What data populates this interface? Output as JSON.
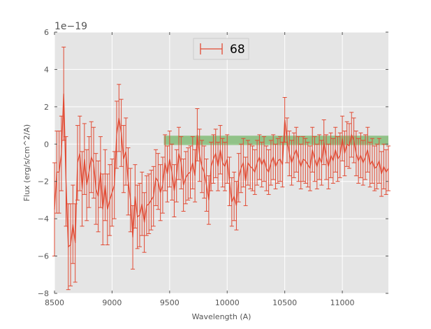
{
  "chart_data": {
    "type": "line",
    "title": "",
    "xlabel": "Wavelength (A)",
    "ylabel": "Flux (erg/s/cm^2/A)",
    "y_offset_text": "1e−19",
    "y_scale": 1e-19,
    "xlim": [
      8500,
      11400
    ],
    "ylim": [
      -8,
      6
    ],
    "x_ticks": [
      8500,
      9000,
      9500,
      10000,
      10500,
      11000
    ],
    "y_ticks": [
      -8,
      -6,
      -4,
      -2,
      0,
      2,
      4,
      6
    ],
    "y_tick_labels": [
      "−8",
      "−6",
      "−4",
      "−2",
      "0",
      "2",
      "4",
      "6"
    ],
    "grid": true,
    "background": "#e5e5e5",
    "legend": {
      "placement": "top-center",
      "entries": [
        "68"
      ]
    },
    "band": {
      "x": [
        9450,
        11400
      ],
      "y": [
        -0.05,
        0.45
      ],
      "color": "#4da63d"
    },
    "series": [
      {
        "name": "68",
        "color": "#e24a33",
        "error_bars": true,
        "x": [
          8500,
          8520,
          8540,
          8560,
          8580,
          8600,
          8620,
          8640,
          8660,
          8680,
          8700,
          8720,
          8740,
          8760,
          8780,
          8800,
          8820,
          8840,
          8860,
          8880,
          8900,
          8920,
          8940,
          8960,
          8980,
          9000,
          9020,
          9040,
          9060,
          9080,
          9100,
          9120,
          9140,
          9160,
          9180,
          9200,
          9220,
          9240,
          9260,
          9280,
          9300,
          9320,
          9340,
          9360,
          9380,
          9400,
          9420,
          9440,
          9460,
          9480,
          9500,
          9520,
          9540,
          9560,
          9580,
          9600,
          9620,
          9640,
          9660,
          9680,
          9700,
          9720,
          9740,
          9760,
          9780,
          9800,
          9820,
          9840,
          9860,
          9880,
          9900,
          9920,
          9940,
          9960,
          9980,
          10000,
          10020,
          10040,
          10060,
          10080,
          10100,
          10120,
          10140,
          10160,
          10180,
          10200,
          10220,
          10240,
          10260,
          10280,
          10300,
          10320,
          10340,
          10360,
          10380,
          10400,
          10420,
          10440,
          10460,
          10480,
          10500,
          10520,
          10540,
          10560,
          10580,
          10600,
          10620,
          10640,
          10660,
          10680,
          10700,
          10720,
          10740,
          10760,
          10780,
          10800,
          10820,
          10840,
          10860,
          10880,
          10900,
          10920,
          10940,
          10960,
          10980,
          11000,
          11020,
          11040,
          11060,
          11080,
          11100,
          11120,
          11140,
          11160,
          11180,
          11200,
          11220,
          11240,
          11260,
          11280,
          11300,
          11320,
          11340,
          11360,
          11380,
          11400
        ],
        "y": [
          -3.5,
          -1.5,
          -1.5,
          -0.5,
          2.7,
          -2.0,
          -5.5,
          -5.4,
          -4.3,
          -5.3,
          -1.0,
          -0.5,
          -2.4,
          -0.8,
          -2.2,
          -1.5,
          -0.7,
          -1.0,
          -2.4,
          -2.8,
          -1.5,
          -3.5,
          -2.2,
          -3.5,
          -3.0,
          -2.6,
          -2.2,
          0.5,
          1.4,
          0.6,
          -0.8,
          -0.4,
          -2.0,
          -3.0,
          -5.0,
          -2.8,
          -3.9,
          -3.8,
          -3.2,
          -4.2,
          -3.3,
          -3.2,
          -3.0,
          -2.8,
          -1.8,
          -2.0,
          -2.6,
          -2.2,
          -1.0,
          -1.6,
          -0.8,
          -1.5,
          -2.5,
          -1.7,
          -0.5,
          -1.0,
          -2.2,
          -1.8,
          -1.6,
          -1.5,
          -1.0,
          -1.7,
          0.5,
          -0.6,
          -1.2,
          -1.5,
          -2.2,
          -3.0,
          -1.2,
          -0.8,
          -0.5,
          -1.2,
          -0.3,
          -1.0,
          -1.2,
          -0.8,
          -2.0,
          -3.1,
          -2.8,
          -3.3,
          -1.8,
          -1.3,
          -1.0,
          -2.0,
          -1.0,
          -1.2,
          -1.3,
          -1.5,
          -1.0,
          -0.7,
          -1.1,
          -0.8,
          -1.3,
          -1.5,
          -1.0,
          -0.7,
          -1.2,
          -0.9,
          -0.8,
          -1.1,
          1.3,
          0.2,
          -0.5,
          -1.0,
          -0.6,
          -0.3,
          -0.8,
          -1.2,
          -0.8,
          -0.9,
          -1.1,
          -1.3,
          -0.3,
          -0.8,
          -1.2,
          -0.7,
          -1.0,
          0.1,
          -0.7,
          -1.2,
          -0.6,
          -0.9,
          -0.3,
          -0.8,
          -0.6,
          0.3,
          -0.5,
          0.0,
          -0.1,
          0.5,
          0.2,
          -0.5,
          -0.9,
          -0.6,
          -1.0,
          -0.7,
          -0.3,
          -1.1,
          -0.9,
          -1.3,
          -1.2,
          -0.9,
          -1.6,
          -1.2,
          -1.5,
          -1.3
        ],
        "err": [
          2.5,
          2.2,
          2.2,
          2.0,
          2.5,
          2.4,
          2.3,
          2.2,
          2.1,
          2.1,
          2.0,
          2.0,
          2.0,
          1.9,
          1.9,
          1.9,
          1.9,
          1.9,
          1.9,
          1.9,
          1.9,
          1.9,
          1.9,
          1.9,
          1.9,
          1.8,
          1.8,
          1.8,
          1.8,
          1.8,
          1.8,
          1.8,
          1.8,
          1.7,
          1.7,
          1.7,
          1.7,
          1.7,
          1.7,
          1.6,
          1.6,
          1.6,
          1.6,
          1.6,
          1.5,
          1.5,
          1.5,
          1.5,
          1.5,
          1.5,
          1.5,
          1.5,
          1.4,
          1.4,
          1.4,
          1.4,
          1.4,
          1.4,
          1.4,
          1.4,
          1.4,
          1.4,
          1.4,
          1.4,
          1.4,
          1.4,
          1.4,
          1.3,
          1.3,
          1.3,
          1.3,
          1.3,
          1.3,
          1.3,
          1.3,
          1.3,
          1.3,
          1.3,
          1.3,
          1.3,
          1.3,
          1.3,
          1.3,
          1.3,
          1.2,
          1.2,
          1.2,
          1.2,
          1.2,
          1.2,
          1.2,
          1.2,
          1.2,
          1.2,
          1.2,
          1.2,
          1.2,
          1.2,
          1.2,
          1.2,
          1.2,
          1.2,
          1.2,
          1.2,
          1.2,
          1.2,
          1.2,
          1.2,
          1.2,
          1.2,
          1.2,
          1.2,
          1.2,
          1.2,
          1.2,
          1.2,
          1.2,
          1.2,
          1.2,
          1.2,
          1.2,
          1.2,
          1.2,
          1.2,
          1.2,
          1.2,
          1.2,
          1.2,
          1.2,
          1.2,
          1.2,
          1.2,
          1.2,
          1.2,
          1.2,
          1.2,
          1.2,
          1.2,
          1.2,
          1.2,
          1.2,
          1.2,
          1.2,
          1.2,
          1.2,
          1.2
        ]
      }
    ]
  }
}
